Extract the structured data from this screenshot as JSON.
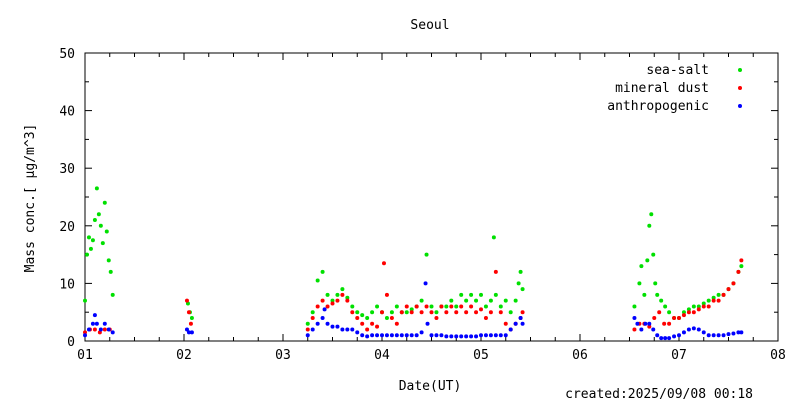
{
  "chart_data": {
    "type": "scatter",
    "title": "Seoul",
    "xlabel": "Date(UT)",
    "ylabel": "Mass conc.[ μg/m^3]",
    "xlim": [
      1,
      8
    ],
    "ylim": [
      0,
      50
    ],
    "x_ticks": [
      "01",
      "02",
      "03",
      "04",
      "05",
      "06",
      "07",
      "08"
    ],
    "y_ticks": [
      "0",
      "10",
      "20",
      "30",
      "40",
      "50"
    ],
    "grid": false,
    "legend_position": "top-right",
    "footer": "created:2025/09/08 00:18",
    "series": [
      {
        "name": "sea-salt",
        "color": "#00e000",
        "points": [
          [
            1.0,
            7
          ],
          [
            1.02,
            15
          ],
          [
            1.04,
            18
          ],
          [
            1.06,
            16
          ],
          [
            1.08,
            17.5
          ],
          [
            1.1,
            21
          ],
          [
            1.12,
            26.5
          ],
          [
            1.14,
            22
          ],
          [
            1.16,
            20
          ],
          [
            1.18,
            17
          ],
          [
            1.2,
            24
          ],
          [
            1.22,
            19
          ],
          [
            1.24,
            14
          ],
          [
            1.26,
            12
          ],
          [
            1.28,
            8
          ],
          [
            2.04,
            6.5
          ],
          [
            2.06,
            5
          ],
          [
            2.08,
            4
          ],
          [
            3.25,
            3
          ],
          [
            3.3,
            5
          ],
          [
            3.35,
            10.5
          ],
          [
            3.4,
            12
          ],
          [
            3.45,
            8
          ],
          [
            3.5,
            7
          ],
          [
            3.55,
            8
          ],
          [
            3.6,
            9
          ],
          [
            3.65,
            7.5
          ],
          [
            3.7,
            6
          ],
          [
            3.75,
            5
          ],
          [
            3.8,
            4.5
          ],
          [
            3.85,
            4
          ],
          [
            3.9,
            5
          ],
          [
            3.95,
            6
          ],
          [
            4.0,
            5
          ],
          [
            4.05,
            4
          ],
          [
            4.1,
            5
          ],
          [
            4.15,
            6
          ],
          [
            4.2,
            5
          ],
          [
            4.25,
            5
          ],
          [
            4.3,
            5.5
          ],
          [
            4.35,
            6
          ],
          [
            4.4,
            7
          ],
          [
            4.45,
            15
          ],
          [
            4.5,
            6
          ],
          [
            4.55,
            5
          ],
          [
            4.6,
            6
          ],
          [
            4.65,
            6
          ],
          [
            4.7,
            7
          ],
          [
            4.75,
            6
          ],
          [
            4.8,
            8
          ],
          [
            4.85,
            7
          ],
          [
            4.9,
            8
          ],
          [
            4.95,
            7
          ],
          [
            5.0,
            8
          ],
          [
            5.05,
            6
          ],
          [
            5.1,
            7
          ],
          [
            5.13,
            18
          ],
          [
            5.15,
            8
          ],
          [
            5.2,
            6
          ],
          [
            5.25,
            7
          ],
          [
            5.3,
            5
          ],
          [
            5.35,
            7
          ],
          [
            5.38,
            10
          ],
          [
            5.4,
            12
          ],
          [
            5.42,
            9
          ],
          [
            6.55,
            6
          ],
          [
            6.6,
            10
          ],
          [
            6.62,
            13
          ],
          [
            6.65,
            8
          ],
          [
            6.68,
            14
          ],
          [
            6.7,
            20
          ],
          [
            6.72,
            22
          ],
          [
            6.74,
            15
          ],
          [
            6.76,
            10
          ],
          [
            6.78,
            8
          ],
          [
            6.82,
            7
          ],
          [
            6.86,
            6
          ],
          [
            6.9,
            5
          ],
          [
            6.95,
            4
          ],
          [
            7.0,
            4
          ],
          [
            7.05,
            5
          ],
          [
            7.1,
            5.5
          ],
          [
            7.15,
            6
          ],
          [
            7.2,
            6
          ],
          [
            7.25,
            6.5
          ],
          [
            7.3,
            7
          ],
          [
            7.35,
            7.5
          ],
          [
            7.4,
            8
          ],
          [
            7.45,
            8
          ],
          [
            7.5,
            9
          ],
          [
            7.55,
            10
          ],
          [
            7.6,
            12
          ],
          [
            7.63,
            13
          ]
        ]
      },
      {
        "name": "mineral dust",
        "color": "#ff0000",
        "points": [
          [
            1.0,
            1.5
          ],
          [
            1.05,
            2
          ],
          [
            1.1,
            2
          ],
          [
            1.15,
            1.5
          ],
          [
            1.2,
            2
          ],
          [
            1.25,
            2
          ],
          [
            2.03,
            7
          ],
          [
            2.05,
            5
          ],
          [
            2.07,
            3
          ],
          [
            3.25,
            2
          ],
          [
            3.3,
            4
          ],
          [
            3.35,
            6
          ],
          [
            3.4,
            7
          ],
          [
            3.45,
            6
          ],
          [
            3.5,
            6.5
          ],
          [
            3.55,
            7
          ],
          [
            3.6,
            8
          ],
          [
            3.65,
            7
          ],
          [
            3.7,
            5
          ],
          [
            3.75,
            4
          ],
          [
            3.8,
            3
          ],
          [
            3.85,
            2
          ],
          [
            3.9,
            3
          ],
          [
            3.95,
            2.5
          ],
          [
            4.0,
            5
          ],
          [
            4.02,
            13.5
          ],
          [
            4.05,
            8
          ],
          [
            4.1,
            4
          ],
          [
            4.15,
            3
          ],
          [
            4.2,
            5
          ],
          [
            4.25,
            6
          ],
          [
            4.3,
            5
          ],
          [
            4.35,
            6
          ],
          [
            4.4,
            5
          ],
          [
            4.45,
            6
          ],
          [
            4.5,
            5
          ],
          [
            4.55,
            4
          ],
          [
            4.6,
            6
          ],
          [
            4.65,
            5
          ],
          [
            4.7,
            6
          ],
          [
            4.75,
            5
          ],
          [
            4.8,
            6
          ],
          [
            4.85,
            5
          ],
          [
            4.9,
            6
          ],
          [
            4.95,
            5
          ],
          [
            5.0,
            5.5
          ],
          [
            5.05,
            4
          ],
          [
            5.1,
            5
          ],
          [
            5.15,
            12
          ],
          [
            5.2,
            5
          ],
          [
            5.25,
            3
          ],
          [
            5.3,
            2
          ],
          [
            5.35,
            3
          ],
          [
            5.4,
            4
          ],
          [
            5.42,
            5
          ],
          [
            6.55,
            2
          ],
          [
            6.6,
            3
          ],
          [
            6.65,
            3
          ],
          [
            6.7,
            2.5
          ],
          [
            6.75,
            4
          ],
          [
            6.8,
            5
          ],
          [
            6.85,
            3
          ],
          [
            6.9,
            3
          ],
          [
            6.95,
            4
          ],
          [
            7.0,
            4
          ],
          [
            7.05,
            4.5
          ],
          [
            7.1,
            5
          ],
          [
            7.15,
            5
          ],
          [
            7.2,
            5.5
          ],
          [
            7.25,
            6
          ],
          [
            7.3,
            6
          ],
          [
            7.35,
            7
          ],
          [
            7.4,
            7
          ],
          [
            7.45,
            8
          ],
          [
            7.5,
            9
          ],
          [
            7.55,
            10
          ],
          [
            7.6,
            12
          ],
          [
            7.63,
            14
          ]
        ]
      },
      {
        "name": "anthropogenic",
        "color": "#0000ff",
        "points": [
          [
            1.0,
            1
          ],
          [
            1.04,
            2
          ],
          [
            1.08,
            3
          ],
          [
            1.1,
            4.5
          ],
          [
            1.12,
            3
          ],
          [
            1.16,
            2
          ],
          [
            1.2,
            3
          ],
          [
            1.24,
            2
          ],
          [
            1.28,
            1.5
          ],
          [
            2.03,
            2
          ],
          [
            2.05,
            1.5
          ],
          [
            2.08,
            1.5
          ],
          [
            3.25,
            1
          ],
          [
            3.3,
            2
          ],
          [
            3.35,
            3
          ],
          [
            3.4,
            4
          ],
          [
            3.42,
            5.5
          ],
          [
            3.45,
            3
          ],
          [
            3.5,
            2.5
          ],
          [
            3.55,
            2.5
          ],
          [
            3.6,
            2
          ],
          [
            3.65,
            2
          ],
          [
            3.7,
            2
          ],
          [
            3.75,
            1.5
          ],
          [
            3.8,
            1
          ],
          [
            3.85,
            0.8
          ],
          [
            3.9,
            1
          ],
          [
            3.95,
            1
          ],
          [
            4.0,
            1
          ],
          [
            4.05,
            1
          ],
          [
            4.1,
            1
          ],
          [
            4.15,
            1
          ],
          [
            4.2,
            1
          ],
          [
            4.25,
            1
          ],
          [
            4.3,
            1
          ],
          [
            4.35,
            1
          ],
          [
            4.4,
            1.5
          ],
          [
            4.44,
            10
          ],
          [
            4.46,
            3
          ],
          [
            4.5,
            1
          ],
          [
            4.55,
            1
          ],
          [
            4.6,
            1
          ],
          [
            4.65,
            0.8
          ],
          [
            4.7,
            0.8
          ],
          [
            4.75,
            0.8
          ],
          [
            4.8,
            0.8
          ],
          [
            4.85,
            0.8
          ],
          [
            4.9,
            0.8
          ],
          [
            4.95,
            0.8
          ],
          [
            5.0,
            1
          ],
          [
            5.05,
            1
          ],
          [
            5.1,
            1
          ],
          [
            5.15,
            1
          ],
          [
            5.2,
            1
          ],
          [
            5.25,
            1
          ],
          [
            5.3,
            2
          ],
          [
            5.35,
            3
          ],
          [
            5.4,
            4
          ],
          [
            5.42,
            3
          ],
          [
            6.55,
            4
          ],
          [
            6.58,
            3
          ],
          [
            6.62,
            2
          ],
          [
            6.66,
            3
          ],
          [
            6.7,
            3
          ],
          [
            6.74,
            2
          ],
          [
            6.78,
            1
          ],
          [
            6.82,
            0.5
          ],
          [
            6.86,
            0.5
          ],
          [
            6.9,
            0.5
          ],
          [
            6.95,
            0.8
          ],
          [
            7.0,
            1
          ],
          [
            7.05,
            1.5
          ],
          [
            7.1,
            2
          ],
          [
            7.15,
            2.2
          ],
          [
            7.2,
            2
          ],
          [
            7.25,
            1.5
          ],
          [
            7.3,
            1
          ],
          [
            7.35,
            1
          ],
          [
            7.4,
            1
          ],
          [
            7.45,
            1
          ],
          [
            7.5,
            1.2
          ],
          [
            7.55,
            1.3
          ],
          [
            7.6,
            1.5
          ],
          [
            7.63,
            1.5
          ]
        ]
      }
    ]
  }
}
